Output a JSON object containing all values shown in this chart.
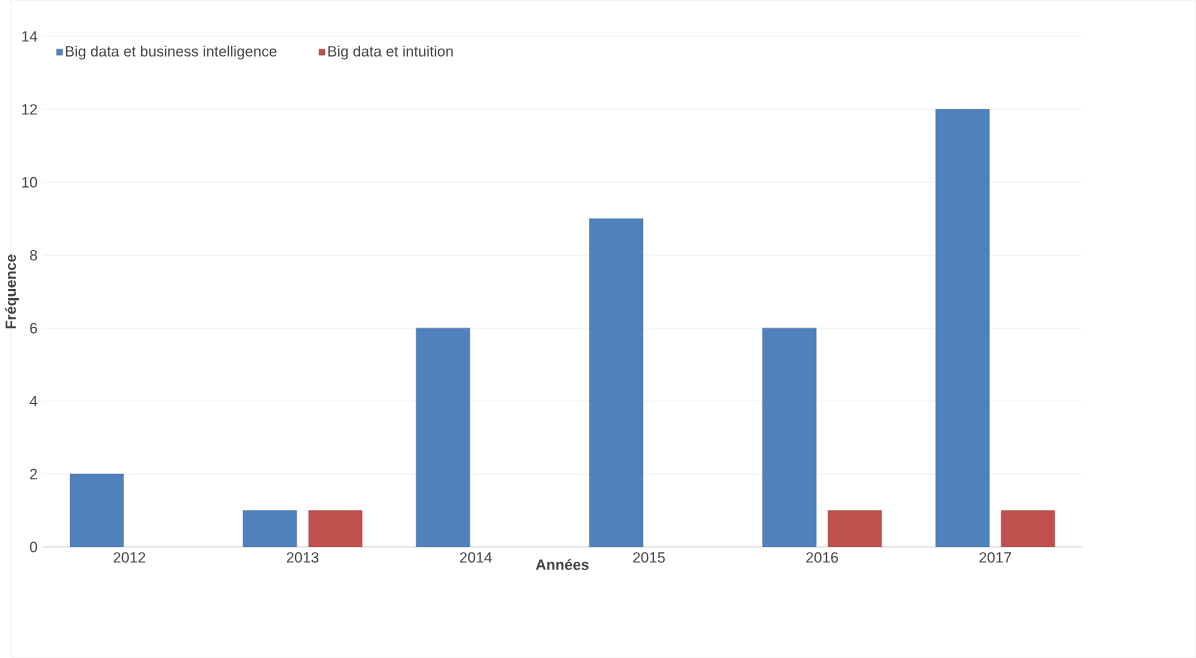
{
  "chart_data": {
    "type": "bar",
    "xlabel": "Années",
    "ylabel": "Fréquence",
    "categories": [
      "2012",
      "2013",
      "2014",
      "2015",
      "2016",
      "2017"
    ],
    "series": [
      {
        "name": "Big data et business intelligence",
        "color": "#4f81bd",
        "values": [
          2,
          1,
          6,
          9,
          6,
          12
        ]
      },
      {
        "name": "Big data et intuition",
        "color": "#c0504d",
        "values": [
          null,
          1,
          null,
          null,
          1,
          1
        ]
      }
    ],
    "ylim": [
      0,
      14
    ],
    "yticks": [
      0,
      2,
      4,
      6,
      8,
      10,
      12,
      14
    ],
    "grid": "y",
    "legend": "top left"
  }
}
